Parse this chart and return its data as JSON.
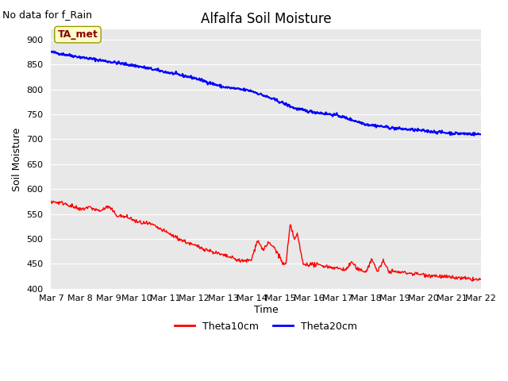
{
  "title": "Alfalfa Soil Moisture",
  "subtitle": "No data for f_Rain",
  "ylabel": "Soil Moisture",
  "xlabel": "Time",
  "legend_label": "TA_met",
  "ylim": [
    400,
    920
  ],
  "yticks": [
    400,
    450,
    500,
    550,
    600,
    650,
    700,
    750,
    800,
    850,
    900
  ],
  "xtick_labels": [
    "Mar 7",
    "Mar 8",
    "Mar 9",
    "Mar 10",
    "Mar 11",
    "Mar 12",
    "Mar 13",
    "Mar 14",
    "Mar 15",
    "Mar 16",
    "Mar 17",
    "Mar 18",
    "Mar 19",
    "Mar 20",
    "Mar 21",
    "Mar 22"
  ],
  "bg_color": "#e8e8e8",
  "line1_color": "#ff0000",
  "line2_color": "#0000ff",
  "legend1_label": "Theta10cm",
  "legend2_label": "Theta20cm",
  "title_fontsize": 12,
  "subtitle_fontsize": 9,
  "tick_fontsize": 8,
  "ylabel_fontsize": 9,
  "xlabel_fontsize": 9,
  "legend_fontsize": 9
}
